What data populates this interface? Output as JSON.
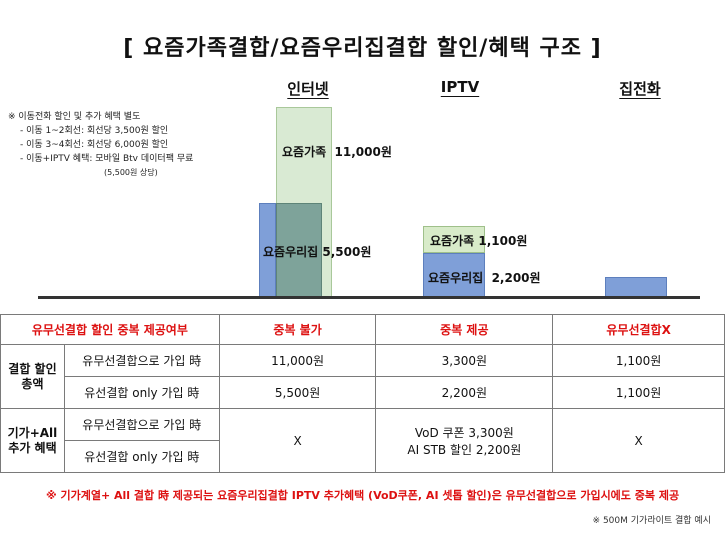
{
  "title": "[ 요즘가족결합/요즘우리집결합 할인/혜택 구조 ]",
  "columns": [
    "인터넷",
    "IPTV",
    "집전화"
  ],
  "notes": {
    "header": "※ 이동전화 할인 및 추가 혜택 별도",
    "items": [
      "- 이동 1~2회선: 회선당 3,500원 할인",
      "- 이동 3~4회선: 회선당 6,000원 할인",
      "- 이동+IPTV 혜택: 모바일 Btv 데이터팩 무료"
    ],
    "subnote": "(5,500원 상당)"
  },
  "bars": {
    "internet_family_label": "요즘가족",
    "internet_family_value": "11,000원",
    "internet_home_label": "요즘우리집",
    "internet_home_value": "5,500원",
    "iptv_family_label": "요즘가족",
    "iptv_family_value": "1,100원",
    "iptv_home_label": "요즘우리집",
    "iptv_home_value": "2,200원"
  },
  "chart_data": {
    "type": "bar",
    "categories": [
      "인터넷",
      "IPTV",
      "집전화"
    ],
    "series": [
      {
        "name": "요즘가족",
        "values": [
          11000,
          1100,
          null
        ]
      },
      {
        "name": "요즘우리집",
        "values": [
          5500,
          2200,
          null
        ]
      },
      {
        "name": "",
        "values": [
          null,
          null,
          1100
        ]
      }
    ]
  },
  "table": {
    "header": [
      "유무선결합 할인 중복 제공여부",
      "중복 불가",
      "중복 제공",
      "유무선결합X"
    ],
    "group1_label": "결합 할인 총액",
    "group1_rows": [
      {
        "label": "유무선결합으로 가입 時",
        "values": [
          "11,000원",
          "3,300원",
          "1,100원"
        ]
      },
      {
        "label": "유선결합 only 가입 時",
        "values": [
          "5,500원",
          "2,200원",
          "1,100원"
        ]
      }
    ],
    "group2_label": "기가+All 추가 혜택",
    "group2_rows": [
      {
        "label": "유무선결합으로 가입 時"
      },
      {
        "label": "유선결합 only 가입 時"
      }
    ],
    "group2_values": [
      "X",
      "VoD 쿠폰 3,300원",
      "AI STB 할인 2,200원",
      "X"
    ]
  },
  "footnote": "※ 기가계열+ All 결합 時 제공되는 요즘우리집결합 IPTV 추가혜택 (VoD쿠폰, AI 셋톱 할인)은 유무선결합으로 가입시에도 중복 제공",
  "footnote2": "※ 500M 기가라이트 결합 예시"
}
